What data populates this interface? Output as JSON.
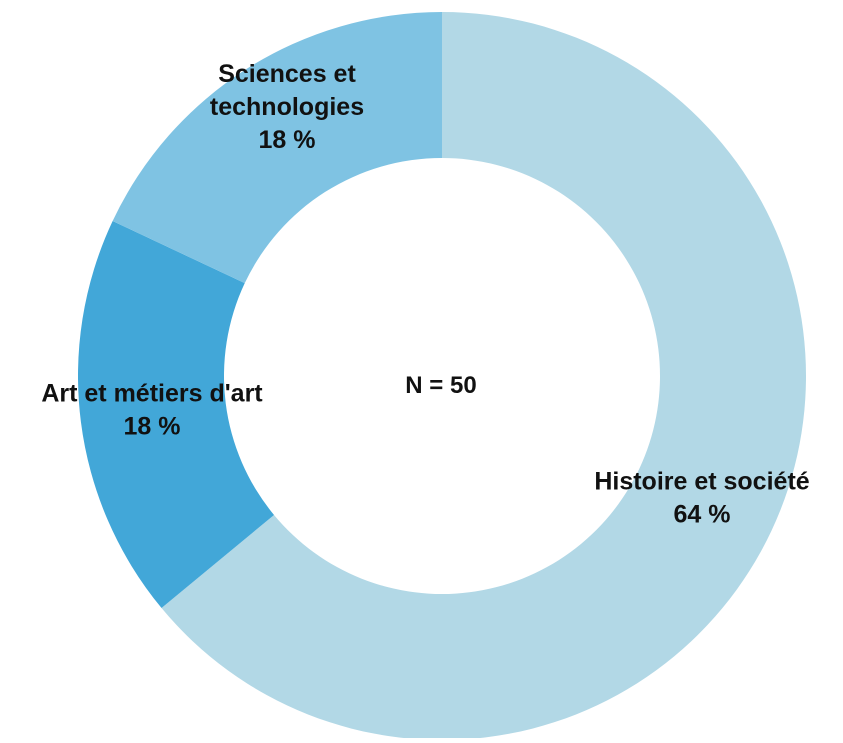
{
  "chart_data": {
    "type": "pie",
    "variant": "donut",
    "center_label": "N = 50",
    "slices": [
      {
        "label_lines": [
          "Histoire et société",
          "64 %"
        ],
        "value": 64,
        "color": "#b2d8e6"
      },
      {
        "label_lines": [
          "Art et métiers d'art",
          "18 %"
        ],
        "value": 18,
        "color": "#42a7d8"
      },
      {
        "label_lines": [
          "Sciences et",
          "technologies",
          "18 %"
        ],
        "value": 18,
        "color": "#7fc3e3"
      }
    ]
  }
}
